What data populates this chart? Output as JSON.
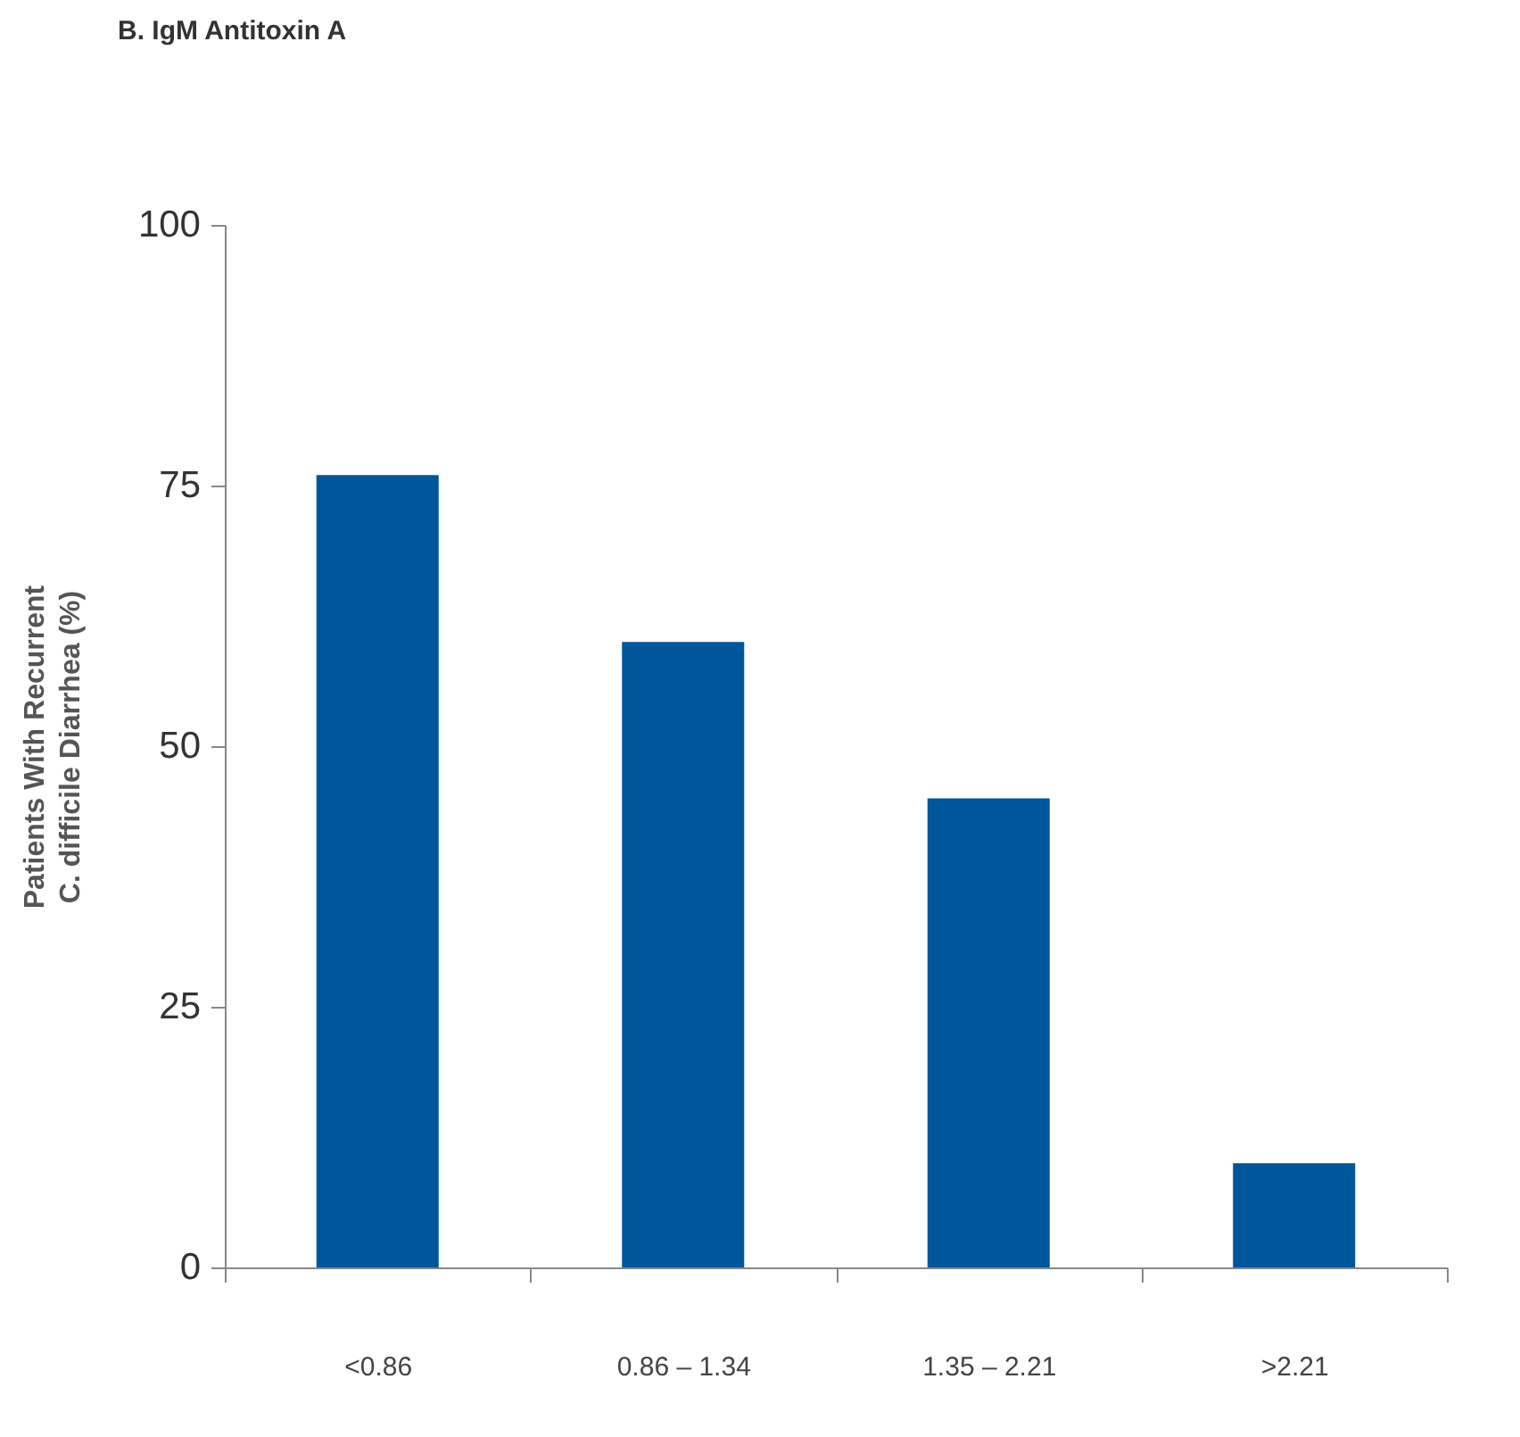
{
  "chart_data": {
    "type": "bar",
    "title": "B. IgM Antitoxin A",
    "ylabel": "Patients With Recurrent\nC. difficile Diarrhea (%)",
    "categories": [
      "<0.86",
      "0.86 – 1.34",
      "1.35 – 2.21",
      ">2.21"
    ],
    "values": [
      76,
      60,
      45,
      10
    ],
    "color": "#00569a",
    "ylim": [
      0,
      100
    ],
    "yticks": [
      0,
      25,
      50,
      75,
      100
    ],
    "grid": false
  }
}
